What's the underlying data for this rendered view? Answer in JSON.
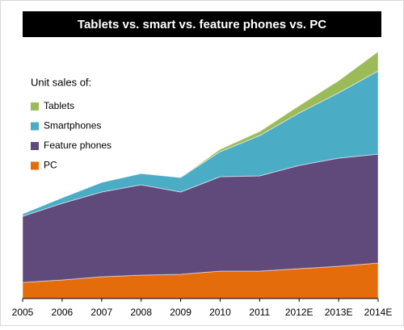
{
  "chart_data": {
    "type": "stacked-area",
    "title": "Tablets vs. smart vs. feature phones vs. PC",
    "legend_title": "Unit sales of:",
    "legend": "top-left",
    "categories": [
      "2005",
      "2006",
      "2007",
      "2008",
      "2009",
      "2010",
      "2011",
      "2012E",
      "2013E",
      "2014E"
    ],
    "ylim": [
      0,
      310
    ],
    "series": [
      {
        "name": "PC",
        "color": "#e46c0a",
        "values": [
          20,
          23,
          27,
          29,
          30,
          34,
          34,
          37,
          40,
          44
        ]
      },
      {
        "name": "Feature phones",
        "color": "#604a7b",
        "values": [
          82,
          95,
          105,
          112,
          102,
          117,
          118,
          128,
          134,
          135
        ]
      },
      {
        "name": "Smartphones",
        "color": "#4bacc6",
        "values": [
          3,
          7,
          12,
          14,
          18,
          31,
          50,
          65,
          81,
          103
        ]
      },
      {
        "name": "Tablets",
        "color": "#9bbb59",
        "values": [
          0,
          0,
          0,
          0,
          0,
          3,
          5,
          9,
          15,
          24
        ]
      }
    ]
  }
}
